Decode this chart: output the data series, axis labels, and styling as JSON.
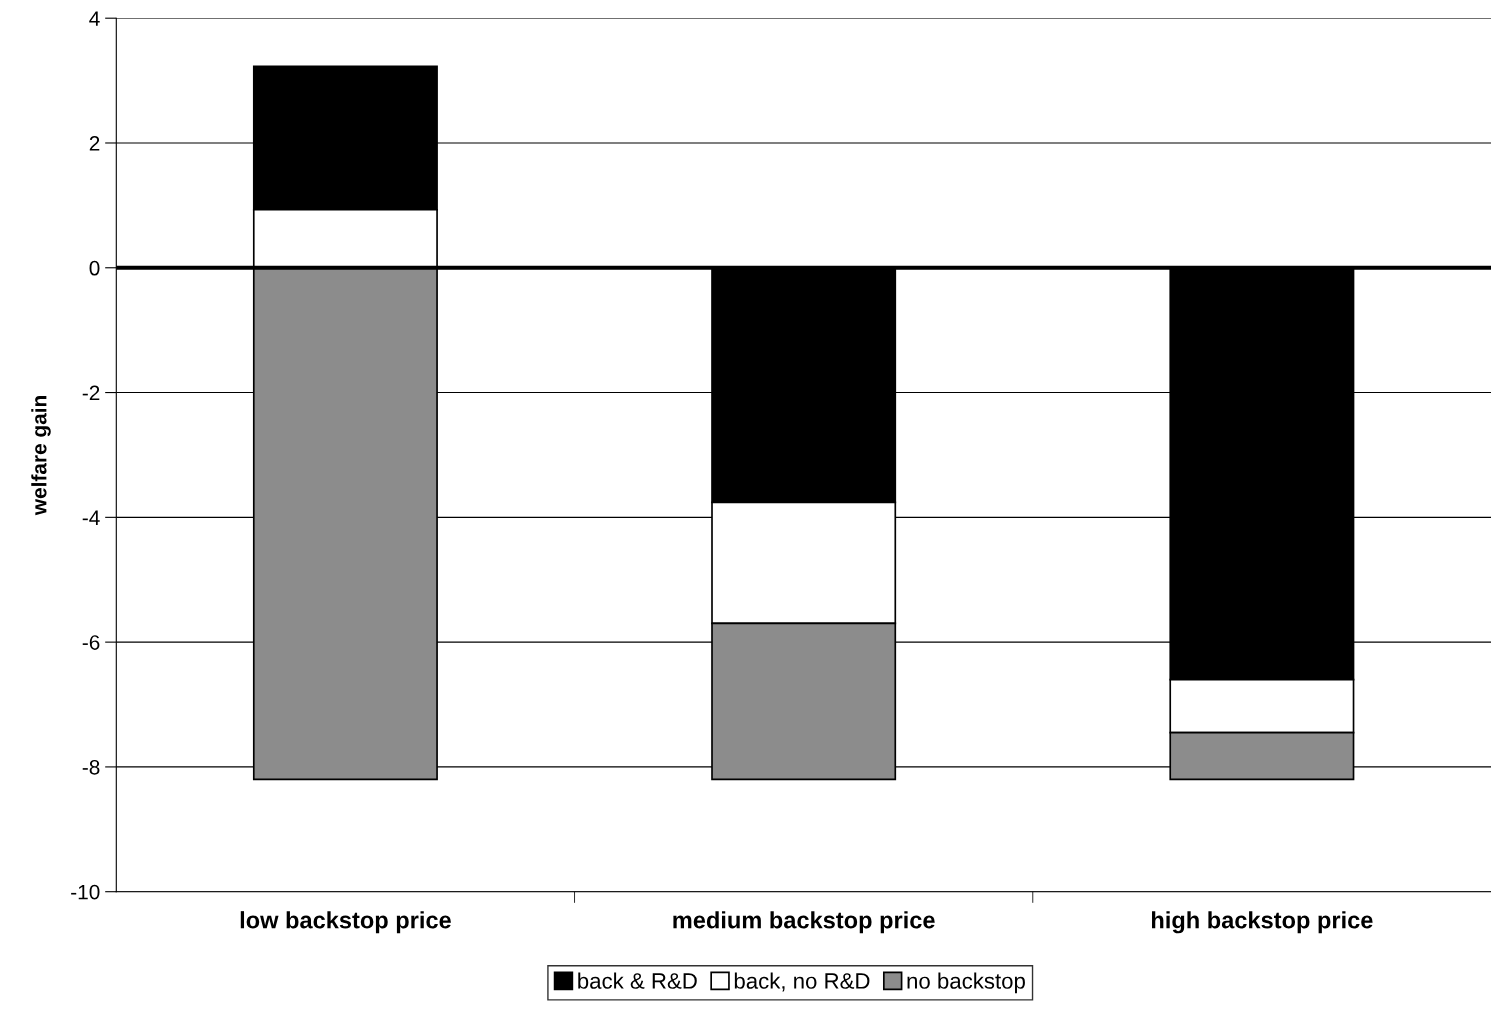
{
  "chart_data": {
    "type": "bar",
    "ylabel": "welfare gain",
    "categories": [
      "low backstop price",
      "medium backstop price",
      "high backstop price"
    ],
    "series": [
      {
        "name": "back & R&D",
        "color": "#000000",
        "values": [
          2.3,
          -3.76,
          -6.6
        ],
        "base": [
          0.93,
          0,
          0
        ]
      },
      {
        "name": "back, no R&D",
        "color": "#ffffff",
        "values": [
          0.93,
          -1.94,
          -0.85
        ],
        "base": [
          0,
          -3.76,
          -6.6
        ]
      },
      {
        "name": "no backstop",
        "color": "#8c8c8c",
        "values": [
          -8.2,
          -2.5,
          -0.75
        ],
        "base": [
          0,
          -5.7,
          -7.45
        ]
      }
    ],
    "ylim": [
      -10,
      4
    ],
    "yticks": [
      -10,
      -8,
      -6,
      -4,
      -2,
      0,
      2,
      4
    ],
    "grid": "y",
    "legend": "bottom",
    "ref_lines": [
      {
        "axis": "y",
        "value": 0,
        "color": "#000000"
      }
    ]
  }
}
